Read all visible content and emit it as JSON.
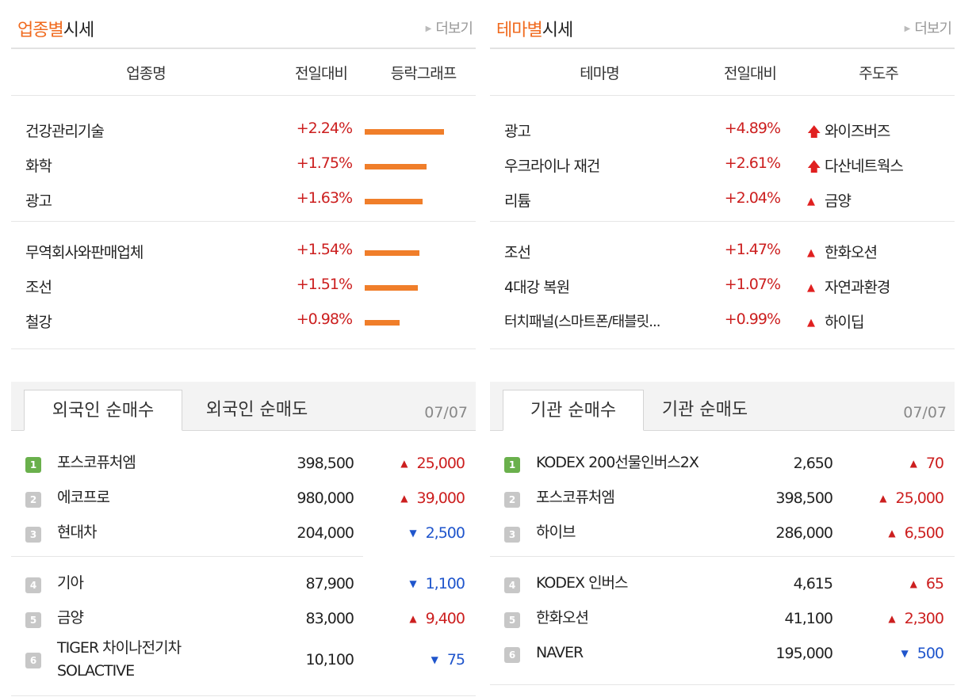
{
  "industry": {
    "title_accent": "업종별",
    "title_rest": "시세",
    "more": "더보기",
    "headers": [
      "업종명",
      "전일대비",
      "등락그래프"
    ],
    "rows": [
      {
        "name": "건강관리기술",
        "change": "+2.24%",
        "pct": 2.24
      },
      {
        "name": "화학",
        "change": "+1.75%",
        "pct": 1.75
      },
      {
        "name": "광고",
        "change": "+1.63%",
        "pct": 1.63
      },
      {
        "name": "무역회사와판매업체",
        "change": "+1.54%",
        "pct": 1.54
      },
      {
        "name": "조선",
        "change": "+1.51%",
        "pct": 1.51
      },
      {
        "name": "철강",
        "change": "+0.98%",
        "pct": 0.98
      }
    ],
    "bar_color": "#f07e2a"
  },
  "theme": {
    "title_accent": "테마별",
    "title_rest": "시세",
    "more": "더보기",
    "headers": [
      "테마명",
      "전일대비",
      "주도주"
    ],
    "rows": [
      {
        "name": "광고",
        "change": "+4.89%",
        "leader": "와이즈버즈",
        "icon": "up-arrow-icon",
        "glyph": "🡅"
      },
      {
        "name": "우크라이나 재건",
        "change": "+2.61%",
        "leader": "다산네트웍스",
        "icon": "up-arrow-icon",
        "glyph": "🡅"
      },
      {
        "name": "리튬",
        "change": "+2.04%",
        "leader": "금양",
        "icon": "up-triangle-icon",
        "glyph": "▲"
      },
      {
        "name": "조선",
        "change": "+1.47%",
        "leader": "한화오션",
        "icon": "up-triangle-icon",
        "glyph": "▲"
      },
      {
        "name": "4대강 복원",
        "change": "+1.07%",
        "leader": "자연과환경",
        "icon": "up-triangle-icon",
        "glyph": "▲"
      },
      {
        "name": "터치패널(스마트폰/태블릿...",
        "change": "+0.99%",
        "leader": "하이딥",
        "icon": "up-triangle-icon",
        "glyph": "▲"
      }
    ]
  },
  "foreign": {
    "tabs": [
      "외국인 순매수",
      "외국인 순매도"
    ],
    "date": "07/07",
    "rows": [
      {
        "rank": "1",
        "name": "포스코퓨처엠",
        "price": "398,500",
        "dir": "up",
        "glyph": "▲",
        "change": "25,000"
      },
      {
        "rank": "2",
        "name": "에코프로",
        "price": "980,000",
        "dir": "up",
        "glyph": "▲",
        "change": "39,000"
      },
      {
        "rank": "3",
        "name": "현대차",
        "price": "204,000",
        "dir": "down",
        "glyph": "▼",
        "change": "2,500"
      },
      {
        "rank": "4",
        "name": "기아",
        "price": "87,900",
        "dir": "down",
        "glyph": "▼",
        "change": "1,100"
      },
      {
        "rank": "5",
        "name": "금양",
        "price": "83,000",
        "dir": "up",
        "glyph": "▲",
        "change": "9,400"
      },
      {
        "rank": "6",
        "name": "TIGER 차이나전기차 SOLACTIVE",
        "name_line1": "TIGER 차이나전기차",
        "name_line2": "SOLACTIVE",
        "price": "10,100",
        "dir": "down",
        "glyph": "▼",
        "change": "75"
      }
    ]
  },
  "institution": {
    "tabs": [
      "기관 순매수",
      "기관 순매도"
    ],
    "date": "07/07",
    "rows": [
      {
        "rank": "1",
        "name": "KODEX 200선물인버스2X",
        "price": "2,650",
        "dir": "up",
        "glyph": "▲",
        "change": "70"
      },
      {
        "rank": "2",
        "name": "포스코퓨처엠",
        "price": "398,500",
        "dir": "up",
        "glyph": "▲",
        "change": "25,000"
      },
      {
        "rank": "3",
        "name": "하이브",
        "price": "286,000",
        "dir": "up",
        "glyph": "▲",
        "change": "6,500"
      },
      {
        "rank": "4",
        "name": "KODEX 인버스",
        "price": "4,615",
        "dir": "up",
        "glyph": "▲",
        "change": "65"
      },
      {
        "rank": "5",
        "name": "한화오션",
        "price": "41,100",
        "dir": "up",
        "glyph": "▲",
        "change": "2,300"
      },
      {
        "rank": "6",
        "name": "NAVER",
        "price": "195,000",
        "dir": "down",
        "glyph": "▼",
        "change": "500"
      }
    ]
  }
}
